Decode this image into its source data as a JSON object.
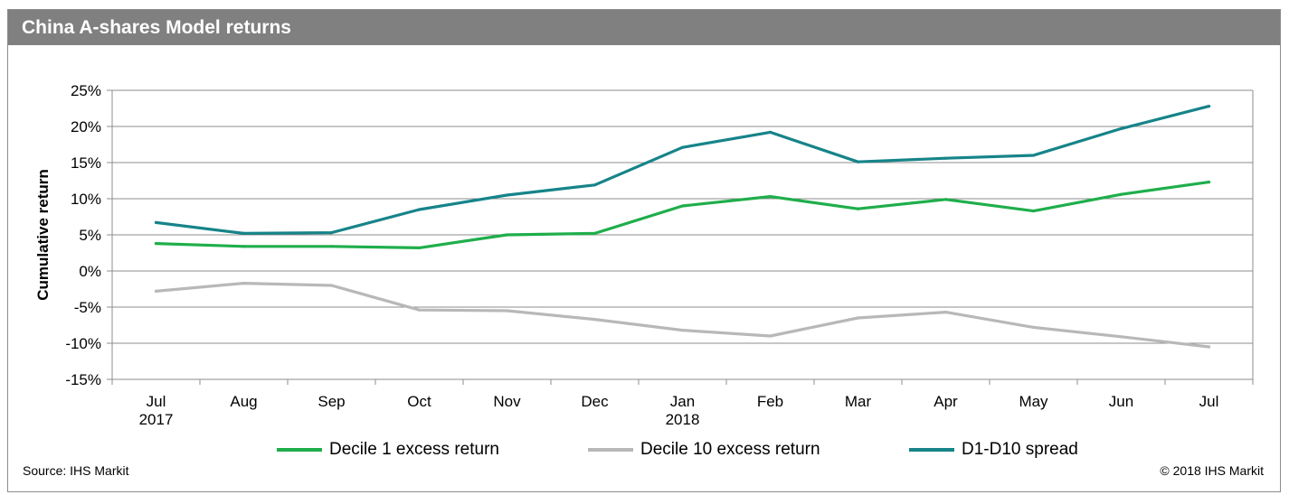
{
  "title": "China A-shares Model returns",
  "source": "Source: IHS Markit",
  "copyright": "© 2018 IHS Markit",
  "chart_data": {
    "type": "line",
    "title": "China A-shares Model returns",
    "xlabel": "",
    "ylabel": "Cumulative return",
    "ylim": [
      -15,
      25
    ],
    "yticks": [
      25,
      20,
      15,
      10,
      5,
      0,
      -5,
      -10,
      -15
    ],
    "ytick_labels": [
      "25%",
      "20%",
      "15%",
      "10%",
      "5%",
      "0%",
      "-5%",
      "-10%",
      "-15%"
    ],
    "grid": true,
    "legend_position": "bottom",
    "categories": [
      "Jul 2017",
      "Aug",
      "Sep",
      "Oct",
      "Nov",
      "Dec",
      "Jan 2018",
      "Feb",
      "Mar",
      "Apr",
      "May",
      "Jun",
      "Jul"
    ],
    "tick_labels": [
      [
        "Jul",
        "2017"
      ],
      [
        "Aug"
      ],
      [
        "Sep"
      ],
      [
        "Oct"
      ],
      [
        "Nov"
      ],
      [
        "Dec"
      ],
      [
        "Jan",
        "2018"
      ],
      [
        "Feb"
      ],
      [
        "Mar"
      ],
      [
        "Apr"
      ],
      [
        "May"
      ],
      [
        "Jun"
      ],
      [
        "Jul"
      ]
    ],
    "series": [
      {
        "name": "Decile 1 excess return",
        "color": "#1fae4b",
        "values": [
          3.8,
          3.4,
          3.4,
          3.2,
          5.0,
          5.2,
          9.0,
          10.3,
          8.6,
          9.9,
          8.3,
          10.6,
          12.3
        ]
      },
      {
        "name": "Decile 10 excess return",
        "color": "#b8b8b8",
        "values": [
          -2.8,
          -1.7,
          -2.0,
          -5.4,
          -5.5,
          -6.7,
          -8.2,
          -9.0,
          -6.5,
          -5.7,
          -7.8,
          -9.1,
          -10.5
        ]
      },
      {
        "name": "D1-D10 spread",
        "color": "#168489",
        "values": [
          6.7,
          5.2,
          5.3,
          8.5,
          10.5,
          11.9,
          17.1,
          19.2,
          15.1,
          15.6,
          16.0,
          19.7,
          22.8
        ]
      }
    ]
  }
}
